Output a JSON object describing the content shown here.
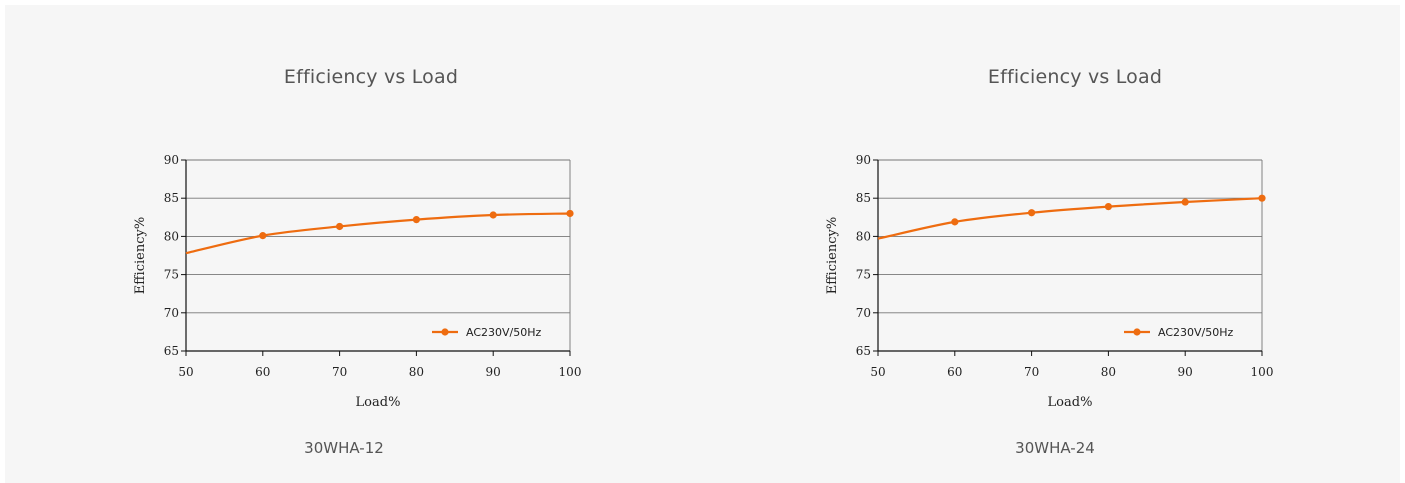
{
  "chart_data": [
    {
      "type": "line",
      "title": "Efficiency vs Load",
      "caption": "30WHA-12",
      "xlabel": "Load%",
      "ylabel": "Efficiency%",
      "x": [
        50,
        60,
        70,
        80,
        90,
        100
      ],
      "xlim": [
        50,
        100
      ],
      "ylim": [
        65,
        90
      ],
      "xticks": [
        "50",
        "60",
        "70",
        "80",
        "90",
        "100"
      ],
      "yticks": [
        "65",
        "70",
        "75",
        "80",
        "85",
        "90"
      ],
      "grid": "horizontal",
      "legend_position": "bottom-right",
      "series": [
        {
          "name": "AC230V/50Hz",
          "color": "#ee6c10",
          "values": [
            77.8,
            80.1,
            81.3,
            82.2,
            82.8,
            83.0
          ]
        }
      ]
    },
    {
      "type": "line",
      "title": "Efficiency vs Load",
      "caption": "30WHA-24",
      "xlabel": "Load%",
      "ylabel": "Efficiency%",
      "x": [
        50,
        60,
        70,
        80,
        90,
        100
      ],
      "xlim": [
        50,
        100
      ],
      "ylim": [
        65,
        90
      ],
      "xticks": [
        "50",
        "60",
        "70",
        "80",
        "90",
        "100"
      ],
      "yticks": [
        "65",
        "70",
        "75",
        "80",
        "85",
        "90"
      ],
      "grid": "horizontal",
      "legend_position": "bottom-right",
      "series": [
        {
          "name": "AC230V/50Hz",
          "color": "#ee6c10",
          "values": [
            79.7,
            81.9,
            83.1,
            83.9,
            84.5,
            85.0
          ]
        }
      ]
    }
  ]
}
